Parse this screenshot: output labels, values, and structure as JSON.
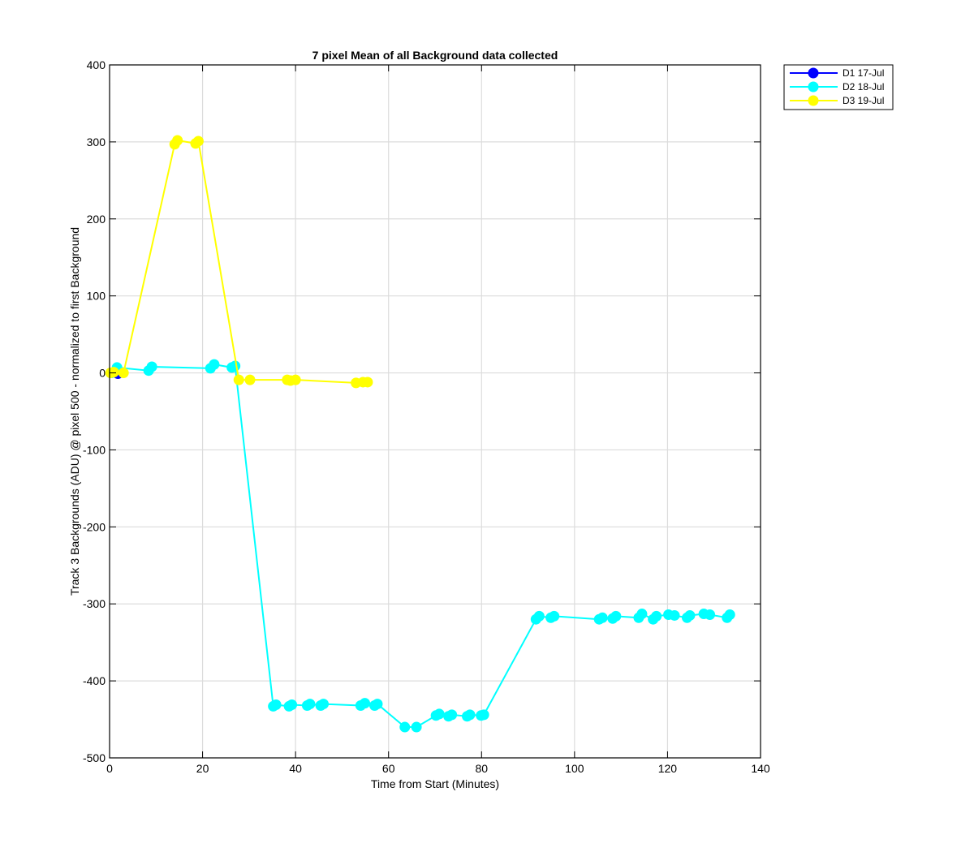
{
  "chart_data": {
    "type": "line",
    "title": "7 pixel Mean of all Background data collected",
    "xlabel": "Time from Start (Minutes)",
    "ylabel": "Track 3 Backgrounds (ADU) @ pixel 500 - normalized to first Background",
    "xlim": [
      0,
      140
    ],
    "ylim": [
      -500,
      400
    ],
    "xticks": [
      0,
      20,
      40,
      60,
      80,
      100,
      120,
      140
    ],
    "yticks": [
      -500,
      -400,
      -300,
      -200,
      -100,
      0,
      100,
      200,
      300,
      400
    ],
    "grid": true,
    "legend_position": "outside top-right",
    "series": [
      {
        "name": "D1 17-Jul",
        "color": "#0000ff",
        "x": [
          0.3,
          1.8
        ],
        "y": [
          0,
          -1
        ]
      },
      {
        "name": "D2 18-Jul",
        "color": "#00ffff",
        "x": [
          0.4,
          1.6,
          8.4,
          9.1,
          21.7,
          22.5,
          26.3,
          27.0,
          35.2,
          35.8,
          38.6,
          39.2,
          42.5,
          43.1,
          45.4,
          46.0,
          54.0,
          54.9,
          57.0,
          57.6,
          63.5,
          66.0,
          70.2,
          70.9,
          72.9,
          73.6,
          76.9,
          77.5,
          79.9,
          80.5,
          91.7,
          92.4,
          94.9,
          95.6,
          105.3,
          106.0,
          108.2,
          108.9,
          113.8,
          114.5,
          116.9,
          117.6,
          120.2,
          121.5,
          124.2,
          124.8,
          127.8,
          129.1,
          132.8,
          133.4
        ],
        "y": [
          0,
          7,
          3,
          8,
          6,
          11,
          7,
          9,
          -433,
          -431,
          -433,
          -431,
          -432,
          -430,
          -432,
          -430,
          -432,
          -429,
          -432,
          -430,
          -460,
          -460,
          -445,
          -443,
          -446,
          -444,
          -446,
          -444,
          -445,
          -444,
          -320,
          -316,
          -318,
          -316,
          -320,
          -318,
          -319,
          -316,
          -318,
          -313,
          -320,
          -316,
          -314,
          -315,
          -318,
          -315,
          -313,
          -314,
          -318,
          -314
        ]
      },
      {
        "name": "D3 19-Jul",
        "color": "#ffff00",
        "x": [
          0.2,
          0.9,
          3.0,
          14.0,
          14.6,
          18.5,
          19.1,
          27.8,
          30.2,
          38.2,
          38.9,
          40.0,
          53.0,
          54.5,
          55.5
        ],
        "y": [
          0,
          1,
          0,
          297,
          302,
          298,
          301,
          -9,
          -9,
          -9,
          -10,
          -9,
          -13,
          -12,
          -12
        ]
      }
    ]
  }
}
